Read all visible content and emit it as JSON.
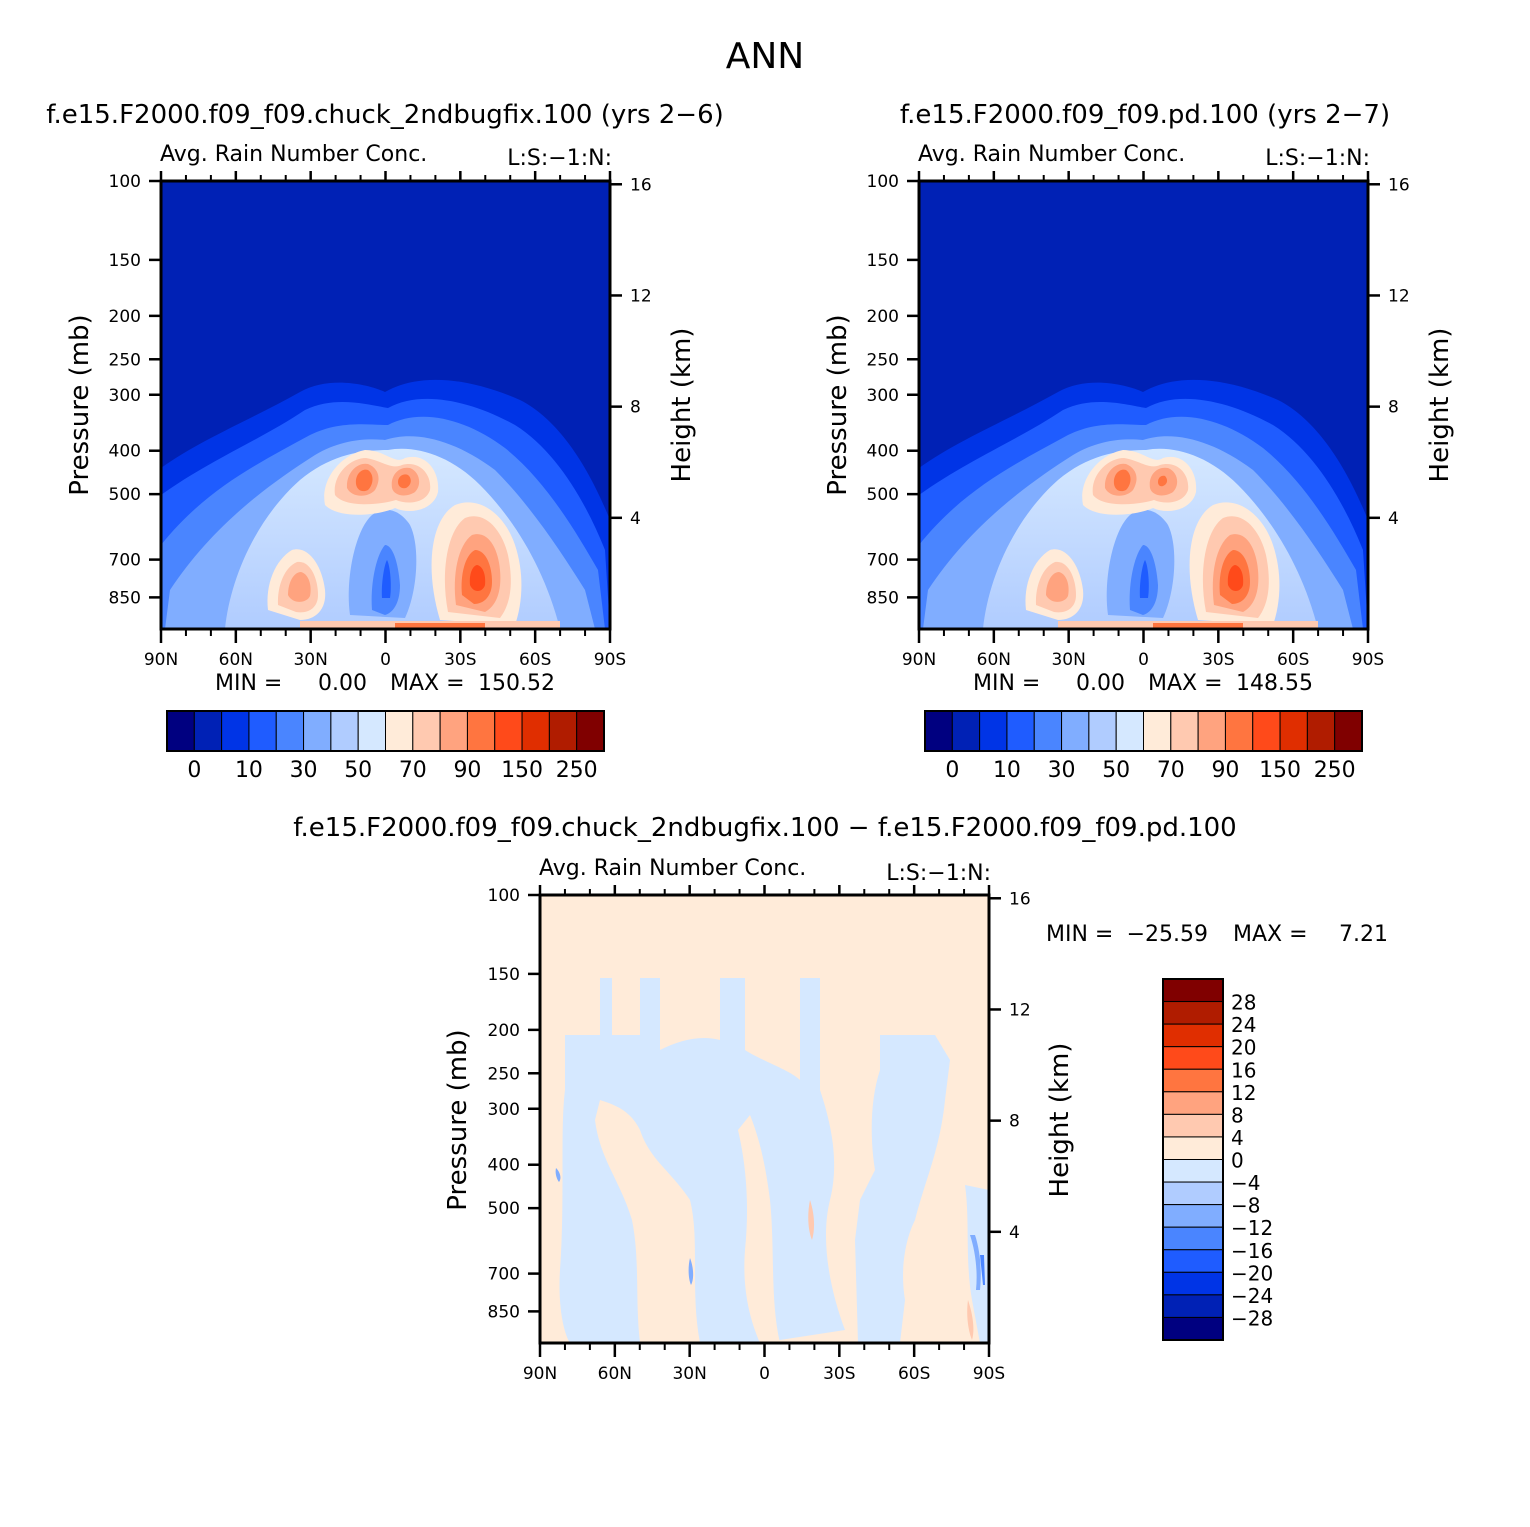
{
  "page": {
    "title": "ANN"
  },
  "colors": {
    "abs_scale": [
      "#000080",
      "#0021b5",
      "#0034e6",
      "#1f5cff",
      "#4a85ff",
      "#80adff",
      "#b0ccff",
      "#d5e8ff",
      "#ffebd9",
      "#ffc9b0",
      "#ffa37f",
      "#ff7540",
      "#ff4a1a",
      "#e02e00",
      "#b01c00",
      "#800000"
    ],
    "diff_scale": [
      "#000080",
      "#0021b5",
      "#0034e6",
      "#1f5cff",
      "#4a85ff",
      "#80adff",
      "#b0ccff",
      "#d5e8ff",
      "#ffebd9",
      "#ffc9b0",
      "#ffa37f",
      "#ff7540",
      "#ff4a1a",
      "#e02e00",
      "#b01c00",
      "#800000"
    ]
  },
  "chart_data": [
    {
      "type": "heatmap",
      "case_title": "f.e15.F2000.f09_f09.chuck_2ndbugfix.100 (yrs 2−6)",
      "variable_label": "Avg. Rain Number Conc.",
      "units_label": "L:S:−1:N:",
      "xlabel": "",
      "ylabel": "Pressure (mb)",
      "ylabel_right": "Height (km)",
      "x_ticks": [
        "90N",
        "60N",
        "30N",
        "0",
        "30S",
        "60S",
        "90S"
      ],
      "y_ticks": [
        "100",
        "150",
        "200",
        "250",
        "300",
        "400",
        "500",
        "700",
        "850"
      ],
      "y_ticks_right": [
        "16",
        "12",
        "8",
        "4"
      ],
      "xlim": [
        90,
        -90
      ],
      "ylim": [
        100,
        1000
      ],
      "y_scale": "log",
      "stats": {
        "min_label": "MIN =",
        "min_value": "0.00",
        "max_label": "MAX =",
        "max_value": "150.52"
      },
      "colorbar_labels": [
        "0",
        "10",
        "30",
        "50",
        "70",
        "90",
        "150",
        "250"
      ],
      "features": [
        {
          "lat": 10,
          "p": 460,
          "value": 110
        },
        {
          "lat": -5,
          "p": 460,
          "value": 100
        },
        {
          "lat": -35,
          "p": 700,
          "value": 150.52
        },
        {
          "lat": 30,
          "p": 700,
          "value": 90
        },
        {
          "lat": 0,
          "p": 700,
          "value": 10
        }
      ]
    },
    {
      "type": "heatmap",
      "case_title": "f.e15.F2000.f09_f09.pd.100 (yrs 2−7)",
      "variable_label": "Avg. Rain Number Conc.",
      "units_label": "L:S:−1:N:",
      "xlabel": "",
      "ylabel": "Pressure (mb)",
      "ylabel_right": "Height (km)",
      "x_ticks": [
        "90N",
        "60N",
        "30N",
        "0",
        "30S",
        "60S",
        "90S"
      ],
      "y_ticks": [
        "100",
        "150",
        "200",
        "250",
        "300",
        "400",
        "500",
        "700",
        "850"
      ],
      "y_ticks_right": [
        "16",
        "12",
        "8",
        "4"
      ],
      "xlim": [
        90,
        -90
      ],
      "ylim": [
        100,
        1000
      ],
      "y_scale": "log",
      "stats": {
        "min_label": "MIN =",
        "min_value": "0.00",
        "max_label": "MAX =",
        "max_value": "148.55"
      },
      "colorbar_labels": [
        "0",
        "10",
        "30",
        "50",
        "70",
        "90",
        "150",
        "250"
      ],
      "features": [
        {
          "lat": 10,
          "p": 460,
          "value": 108
        },
        {
          "lat": -5,
          "p": 460,
          "value": 98
        },
        {
          "lat": -35,
          "p": 700,
          "value": 148.55
        },
        {
          "lat": 30,
          "p": 700,
          "value": 88
        },
        {
          "lat": 0,
          "p": 700,
          "value": 10
        }
      ]
    },
    {
      "type": "heatmap",
      "case_title": "f.e15.F2000.f09_f09.chuck_2ndbugfix.100 − f.e15.F2000.f09_f09.pd.100",
      "variable_label": "Avg. Rain Number Conc.",
      "units_label": "L:S:−1:N:",
      "xlabel": "",
      "ylabel": "Pressure (mb)",
      "ylabel_right": "Height (km)",
      "x_ticks": [
        "90N",
        "60N",
        "30N",
        "0",
        "30S",
        "60S",
        "90S"
      ],
      "y_ticks": [
        "100",
        "150",
        "200",
        "250",
        "300",
        "400",
        "500",
        "700",
        "850"
      ],
      "y_ticks_right": [
        "16",
        "12",
        "8",
        "4"
      ],
      "xlim": [
        90,
        -90
      ],
      "ylim": [
        100,
        1000
      ],
      "y_scale": "log",
      "stats": {
        "min_label": "MIN =",
        "min_value": "−25.59",
        "max_label": "MAX =",
        "max_value": "7.21"
      },
      "colorbar_labels": [
        "28",
        "24",
        "20",
        "16",
        "12",
        "8",
        "4",
        "0",
        "−4",
        "−8",
        "−12",
        "−16",
        "−20",
        "−24",
        "−28"
      ]
    }
  ]
}
